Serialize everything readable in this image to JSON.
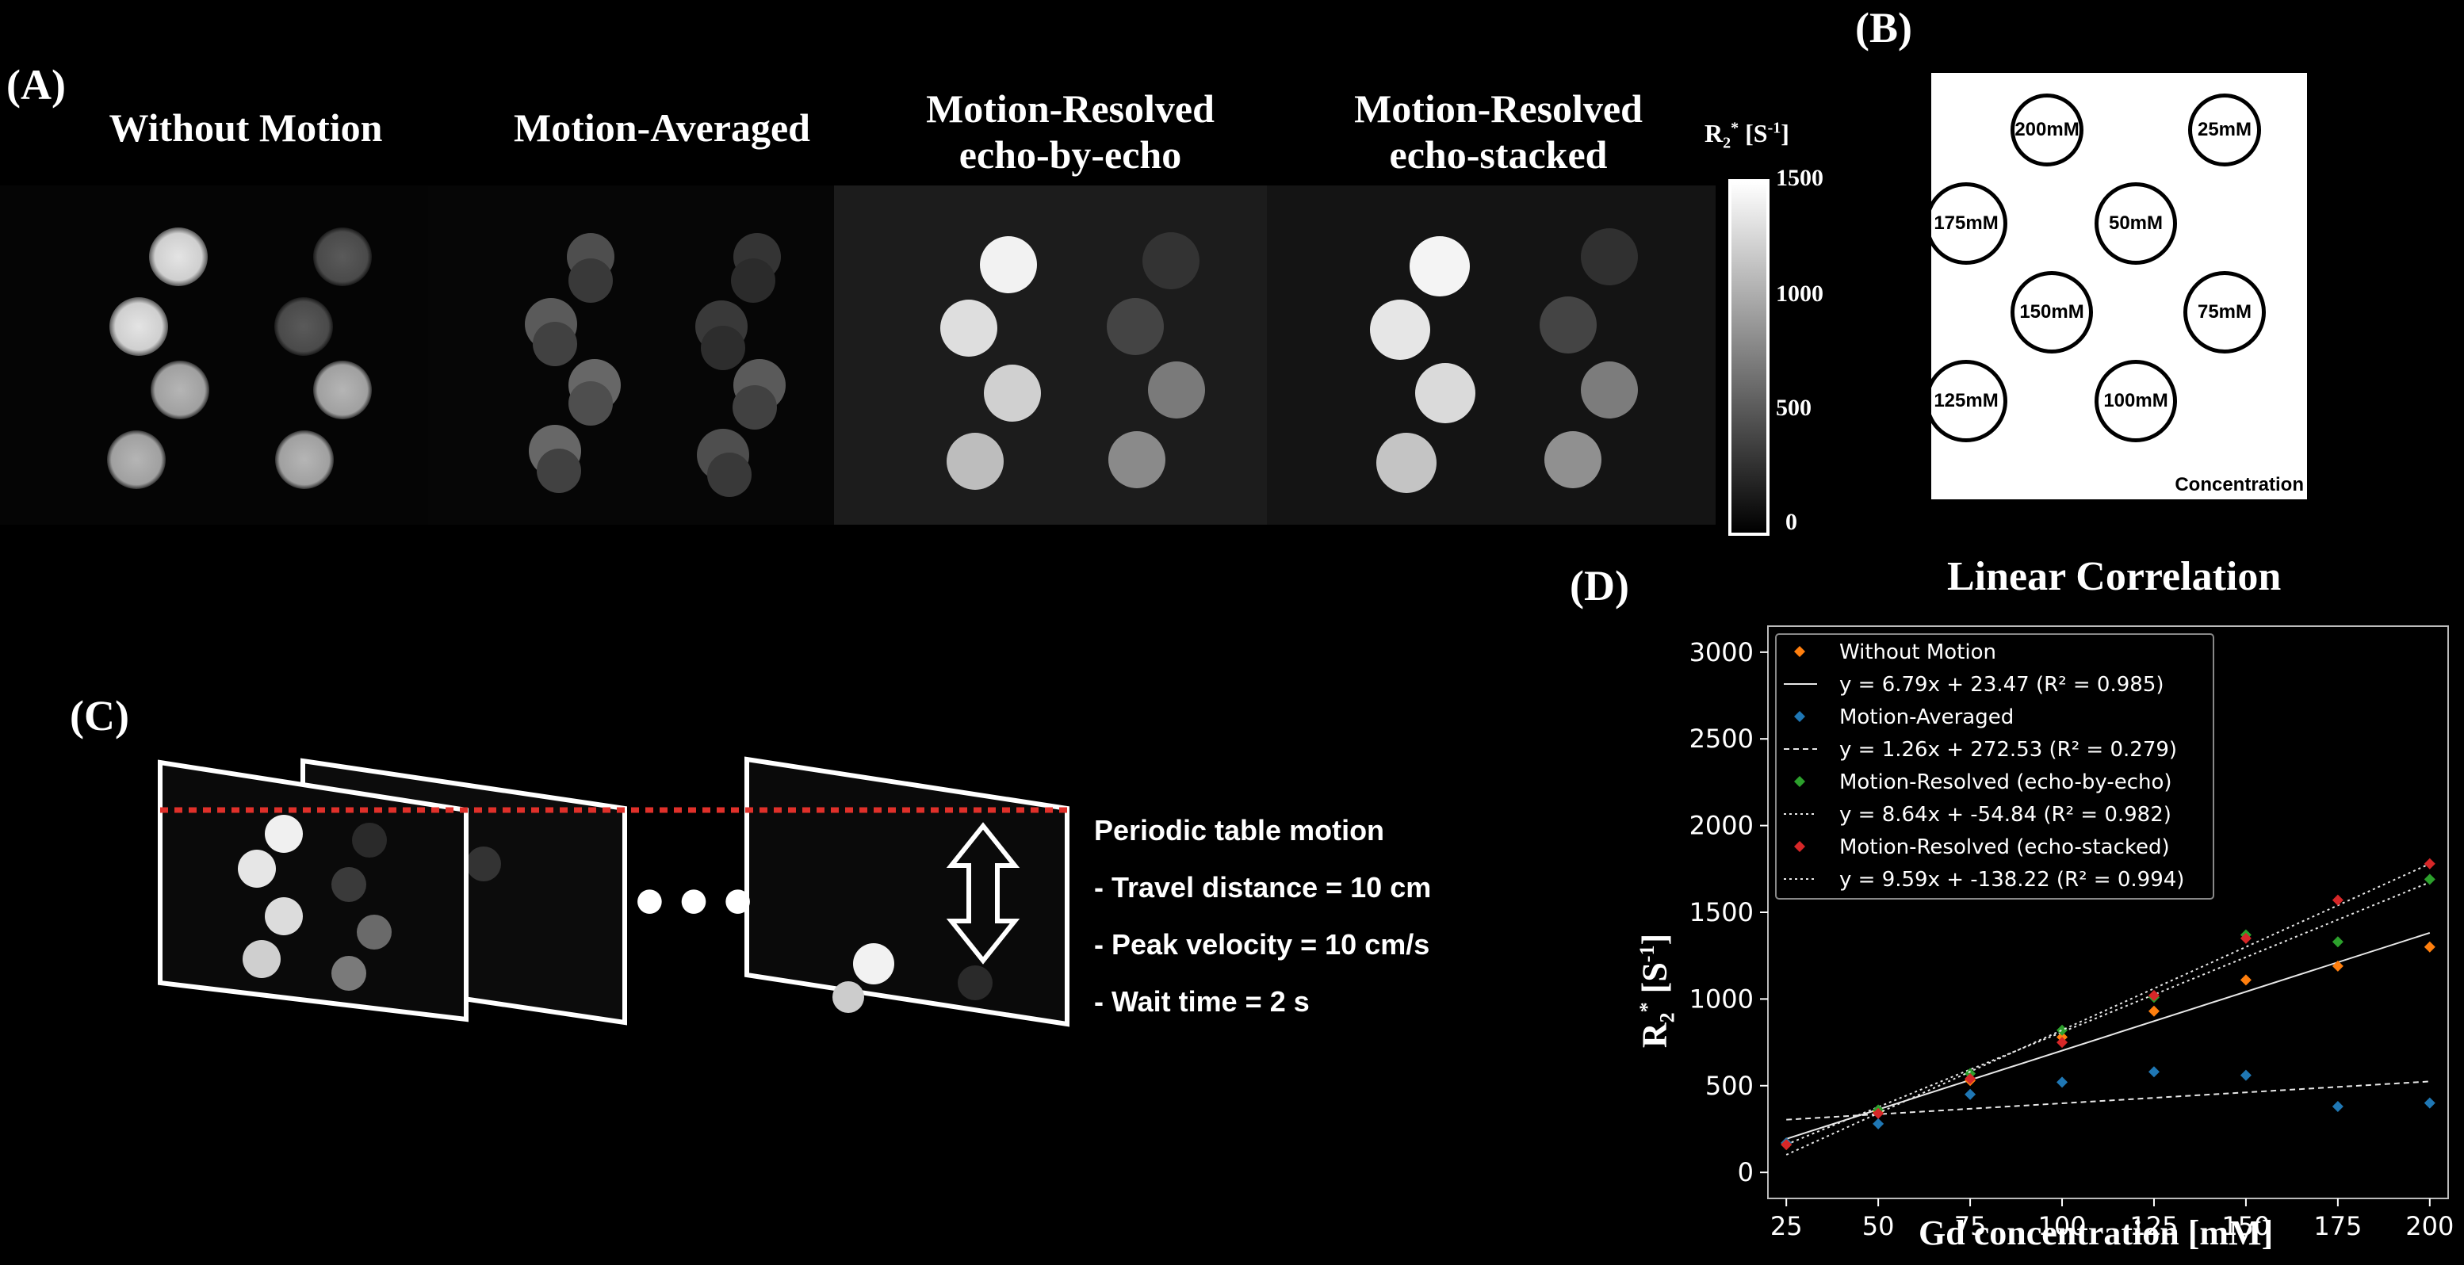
{
  "panel_a": {
    "letter": "(A)",
    "titles": [
      {
        "line1": "Without Motion",
        "line2": ""
      },
      {
        "line1": "Motion-Averaged",
        "line2": ""
      },
      {
        "line1": "Motion-Resolved",
        "line2": "echo-by-echo"
      },
      {
        "line1": "Motion-Resolved",
        "line2": "echo-stacked"
      }
    ],
    "colorbar": {
      "label_prefix": "R",
      "label_sub": "2",
      "label_sup": "*",
      "label_unit": "[S",
      "label_unit_sup": "-1",
      "label_close": "]",
      "ticks": [
        "1500",
        "1000",
        "500",
        "0"
      ]
    }
  },
  "panel_b": {
    "letter": "(B)",
    "vials": [
      "200mM",
      "25mM",
      "175mM",
      "50mM",
      "150mM",
      "75mM",
      "125mM",
      "100mM"
    ],
    "caption": "Concentration"
  },
  "panel_c": {
    "letter": "(C)",
    "ellipsis": "● ● ●",
    "lines": [
      "Periodic table motion",
      "- Travel distance = 10 cm",
      "- Peak velocity = 10 cm/s",
      "- Wait time = 2 s"
    ]
  },
  "panel_d": {
    "letter": "(D)"
  },
  "chart_data": {
    "type": "scatter",
    "title": "Linear Correlation",
    "xlabel": "Gd concentration [mM]",
    "ylabel_prefix": "R",
    "ylabel_sub": "2",
    "ylabel_sup": "*",
    "ylabel_unit": "[S",
    "ylabel_unit_sup": "-1",
    "ylabel_close": "]",
    "xlim": [
      20,
      205
    ],
    "ylim": [
      -150,
      3150
    ],
    "xticks": [
      25,
      50,
      75,
      100,
      125,
      150,
      175,
      200
    ],
    "yticks": [
      0,
      500,
      1000,
      1500,
      2000,
      2500,
      3000
    ],
    "x": [
      25,
      50,
      75,
      100,
      125,
      150,
      175,
      200
    ],
    "series": [
      {
        "name": "Without Motion",
        "color": "#ff7f0e",
        "values": [
          170,
          350,
          530,
          780,
          930,
          1110,
          1190,
          1300
        ],
        "fit": {
          "slope": 6.79,
          "intercept": 23.47,
          "label": "y = 6.79x + 23.47 (R² = 0.985)",
          "dash": "solid"
        }
      },
      {
        "name": "Motion-Averaged",
        "color": "#1f77b4",
        "values": [
          170,
          280,
          450,
          520,
          580,
          560,
          380,
          400
        ],
        "fit": {
          "slope": 1.26,
          "intercept": 272.53,
          "label": "y = 1.26x + 272.53 (R² = 0.279)",
          "dash": "dashed"
        }
      },
      {
        "name": "Motion-Resolved (echo-by-echo)",
        "color": "#2ca02c",
        "values": [
          160,
          360,
          570,
          820,
          1010,
          1370,
          1330,
          1690
        ],
        "fit": {
          "slope": 8.64,
          "intercept": -54.84,
          "label": "y = 8.64x + -54.84 (R² = 0.982)",
          "dash": "dotted"
        }
      },
      {
        "name": "Motion-Resolved (echo-stacked)",
        "color": "#d62728",
        "values": [
          160,
          340,
          540,
          750,
          1020,
          1350,
          1570,
          1780
        ],
        "fit": {
          "slope": 9.59,
          "intercept": -138.22,
          "label": "y = 9.59x + -138.22 (R² = 0.994)",
          "dash": "dotted"
        }
      }
    ]
  }
}
